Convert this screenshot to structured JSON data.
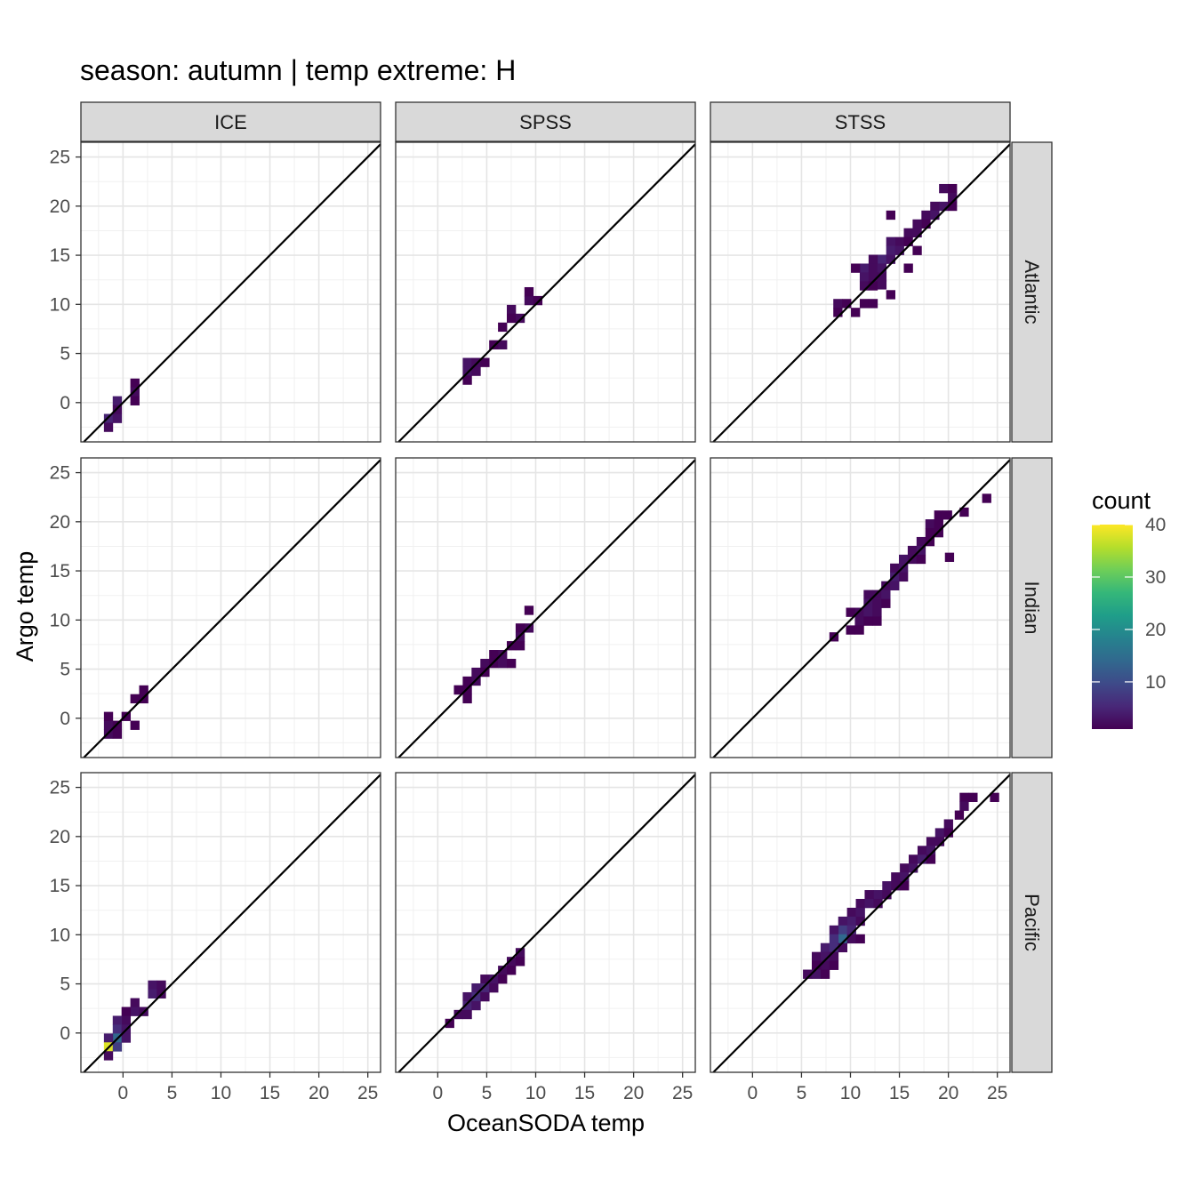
{
  "chart_data": {
    "type": "heatmap",
    "title": "season: autumn | temp extreme: H",
    "xlabel": "OceanSODA temp",
    "ylabel": "Argo temp",
    "xlim": [
      -4.3,
      26.3
    ],
    "ylim": [
      -4.0,
      26.5
    ],
    "ticks": [
      0,
      5,
      10,
      15,
      20,
      25
    ],
    "tick_labels": [
      "0",
      "5",
      "10",
      "15",
      "20",
      "25"
    ],
    "grid": true,
    "reference_line": "y = x",
    "bin_width": 0.9,
    "columns": [
      "ICE",
      "SPSS",
      "STSS"
    ],
    "rows": [
      "Atlantic",
      "Indian",
      "Pacific"
    ],
    "legend": {
      "title": "count",
      "position": "right",
      "ticks": [
        10,
        20,
        30,
        40
      ],
      "tick_labels": [
        "10",
        "20",
        "30",
        "40"
      ],
      "min": 1,
      "max": 40,
      "colors": [
        "#440154",
        "#482878",
        "#3e4a89",
        "#31688e",
        "#26828e",
        "#1f9e89",
        "#35b779",
        "#6ece58",
        "#b5de2b",
        "#fde725"
      ]
    },
    "panels": [
      {
        "col": "ICE",
        "row": "Atlantic",
        "cells": [
          [
            1.2,
            2.0,
            1
          ],
          [
            1.2,
            1.1,
            2
          ],
          [
            1.2,
            0.2,
            1
          ],
          [
            -0.6,
            0.2,
            4
          ],
          [
            -0.6,
            -0.7,
            2
          ],
          [
            -1.5,
            -1.6,
            5
          ],
          [
            -0.6,
            -1.6,
            3
          ],
          [
            -1.5,
            -2.5,
            2
          ]
        ]
      },
      {
        "col": "SPSS",
        "row": "Atlantic",
        "cells": [
          [
            9.3,
            10.4,
            2
          ],
          [
            10.2,
            10.4,
            1
          ],
          [
            9.3,
            11.3,
            1
          ],
          [
            7.5,
            9.5,
            2
          ],
          [
            7.5,
            8.6,
            1
          ],
          [
            8.4,
            8.6,
            2
          ],
          [
            6.6,
            7.7,
            1
          ],
          [
            6.6,
            5.9,
            2
          ],
          [
            5.7,
            5.9,
            1
          ],
          [
            3.0,
            4.1,
            3
          ],
          [
            3.9,
            4.1,
            2
          ],
          [
            4.8,
            4.1,
            1
          ],
          [
            3.0,
            3.2,
            3
          ],
          [
            3.9,
            3.2,
            2
          ],
          [
            3.0,
            2.3,
            1
          ]
        ]
      },
      {
        "col": "STSS",
        "row": "Atlantic",
        "cells": [
          [
            19.5,
            21.8,
            2
          ],
          [
            20.4,
            21.8,
            1
          ],
          [
            20.4,
            20.9,
            2
          ],
          [
            19.5,
            20.0,
            3
          ],
          [
            20.4,
            20.0,
            1
          ],
          [
            18.6,
            20.0,
            2
          ],
          [
            17.7,
            19.1,
            2
          ],
          [
            18.6,
            19.1,
            3
          ],
          [
            17.7,
            18.2,
            1
          ],
          [
            16.8,
            18.2,
            2
          ],
          [
            14.1,
            19.1,
            1
          ],
          [
            15.9,
            17.3,
            2
          ],
          [
            16.8,
            17.3,
            2
          ],
          [
            15.0,
            16.4,
            2
          ],
          [
            15.9,
            16.4,
            1
          ],
          [
            14.1,
            16.4,
            3
          ],
          [
            14.1,
            15.5,
            4
          ],
          [
            15.0,
            15.5,
            3
          ],
          [
            16.8,
            15.5,
            1
          ],
          [
            13.2,
            14.6,
            5
          ],
          [
            14.1,
            14.6,
            3
          ],
          [
            12.3,
            14.6,
            2
          ],
          [
            11.4,
            13.7,
            4
          ],
          [
            12.3,
            13.7,
            2
          ],
          [
            13.2,
            13.7,
            3
          ],
          [
            10.5,
            13.7,
            1
          ],
          [
            11.4,
            12.8,
            3
          ],
          [
            12.3,
            12.8,
            2
          ],
          [
            13.2,
            12.8,
            2
          ],
          [
            11.4,
            11.9,
            2
          ],
          [
            12.3,
            11.9,
            1
          ],
          [
            14.1,
            11.0,
            1
          ],
          [
            8.7,
            10.1,
            2
          ],
          [
            9.6,
            10.1,
            1
          ],
          [
            11.4,
            10.1,
            1
          ],
          [
            12.3,
            10.1,
            1
          ],
          [
            8.7,
            9.2,
            1
          ],
          [
            10.5,
            9.2,
            1
          ],
          [
            15.9,
            13.7,
            1
          ],
          [
            13.2,
            12.0,
            2
          ]
        ]
      },
      {
        "col": "ICE",
        "row": "Indian",
        "cells": [
          [
            2.1,
            2.9,
            1
          ],
          [
            1.2,
            2.0,
            1
          ],
          [
            2.1,
            2.0,
            1
          ],
          [
            0.3,
            0.2,
            1
          ],
          [
            -1.5,
            -0.7,
            2
          ],
          [
            -0.6,
            -0.7,
            1
          ],
          [
            -1.5,
            -1.6,
            2
          ],
          [
            -0.6,
            -1.6,
            1
          ],
          [
            1.2,
            -0.7,
            1
          ],
          [
            -1.5,
            0.2,
            1
          ]
        ]
      },
      {
        "col": "SPSS",
        "row": "Indian",
        "cells": [
          [
            9.3,
            11.0,
            1
          ],
          [
            9.3,
            9.2,
            2
          ],
          [
            8.4,
            9.2,
            1
          ],
          [
            8.4,
            8.3,
            2
          ],
          [
            7.5,
            7.4,
            1
          ],
          [
            8.4,
            7.4,
            1
          ],
          [
            6.6,
            6.5,
            2
          ],
          [
            5.7,
            6.5,
            1
          ],
          [
            4.8,
            5.6,
            2
          ],
          [
            5.7,
            5.6,
            1
          ],
          [
            6.6,
            5.6,
            2
          ],
          [
            7.5,
            5.6,
            1
          ],
          [
            3.9,
            4.7,
            2
          ],
          [
            4.8,
            4.7,
            1
          ],
          [
            3.0,
            3.8,
            1
          ],
          [
            3.9,
            3.8,
            2
          ],
          [
            2.1,
            2.9,
            2
          ],
          [
            3.0,
            2.9,
            1
          ],
          [
            3.0,
            2.0,
            1
          ],
          [
            2.1,
            2.9,
            1
          ]
        ]
      },
      {
        "col": "STSS",
        "row": "Indian",
        "cells": [
          [
            23.9,
            22.4,
            1
          ],
          [
            21.6,
            21.0,
            1
          ],
          [
            19.0,
            20.7,
            1
          ],
          [
            19.9,
            20.7,
            1
          ],
          [
            18.1,
            19.8,
            2
          ],
          [
            19.0,
            19.8,
            1
          ],
          [
            18.1,
            18.9,
            1
          ],
          [
            19.0,
            18.9,
            1
          ],
          [
            17.2,
            18.0,
            2
          ],
          [
            18.1,
            18.0,
            1
          ],
          [
            16.3,
            17.1,
            2
          ],
          [
            17.2,
            17.1,
            3
          ],
          [
            15.4,
            16.2,
            3
          ],
          [
            16.3,
            16.2,
            2
          ],
          [
            17.2,
            16.2,
            1
          ],
          [
            20.1,
            16.4,
            1
          ],
          [
            14.5,
            15.3,
            2
          ],
          [
            15.4,
            15.3,
            3
          ],
          [
            14.5,
            14.4,
            4
          ],
          [
            15.4,
            14.4,
            2
          ],
          [
            13.6,
            13.5,
            2
          ],
          [
            14.5,
            13.5,
            3
          ],
          [
            12.7,
            12.6,
            2
          ],
          [
            13.6,
            12.6,
            3
          ],
          [
            11.8,
            12.6,
            2
          ],
          [
            11.8,
            11.7,
            3
          ],
          [
            12.7,
            11.7,
            2
          ],
          [
            13.6,
            11.7,
            1
          ],
          [
            10.9,
            10.8,
            2
          ],
          [
            11.8,
            10.8,
            3
          ],
          [
            12.7,
            10.8,
            2
          ],
          [
            10.0,
            10.8,
            1
          ],
          [
            10.9,
            9.9,
            2
          ],
          [
            11.8,
            9.9,
            1
          ],
          [
            12.7,
            9.9,
            1
          ],
          [
            10.0,
            9.0,
            1
          ],
          [
            10.9,
            9.0,
            1
          ],
          [
            8.3,
            8.3,
            1
          ]
        ]
      },
      {
        "col": "ICE",
        "row": "Pacific",
        "cells": [
          [
            3.0,
            4.9,
            3
          ],
          [
            3.9,
            4.9,
            2
          ],
          [
            3.0,
            4.0,
            4
          ],
          [
            3.9,
            4.0,
            2
          ],
          [
            1.2,
            3.1,
            2
          ],
          [
            1.2,
            2.2,
            3
          ],
          [
            2.1,
            2.2,
            2
          ],
          [
            0.3,
            2.2,
            1
          ],
          [
            0.3,
            1.3,
            2
          ],
          [
            -0.6,
            1.3,
            4
          ],
          [
            -0.6,
            0.4,
            6
          ],
          [
            0.3,
            0.4,
            3
          ],
          [
            -0.6,
            -0.5,
            14
          ],
          [
            0.3,
            -0.5,
            3
          ],
          [
            -1.5,
            -0.5,
            4
          ],
          [
            -1.5,
            -1.4,
            38
          ],
          [
            -0.6,
            -1.4,
            8
          ],
          [
            -1.5,
            -2.3,
            2
          ]
        ]
      },
      {
        "col": "SPSS",
        "row": "Pacific",
        "cells": [
          [
            8.4,
            8.2,
            2
          ],
          [
            7.5,
            7.3,
            2
          ],
          [
            8.4,
            7.3,
            1
          ],
          [
            6.6,
            6.4,
            2
          ],
          [
            7.5,
            6.4,
            1
          ],
          [
            4.8,
            5.5,
            2
          ],
          [
            5.7,
            5.5,
            3
          ],
          [
            6.6,
            5.5,
            1
          ],
          [
            3.9,
            4.6,
            4
          ],
          [
            4.8,
            4.6,
            5
          ],
          [
            5.7,
            4.6,
            2
          ],
          [
            3.0,
            3.7,
            3
          ],
          [
            3.9,
            3.7,
            6
          ],
          [
            4.8,
            3.7,
            2
          ],
          [
            3.0,
            2.8,
            5
          ],
          [
            3.9,
            2.8,
            3
          ],
          [
            2.1,
            1.9,
            2
          ],
          [
            3.0,
            1.9,
            2
          ],
          [
            1.2,
            1.0,
            1
          ]
        ]
      },
      {
        "col": "STSS",
        "row": "Pacific",
        "cells": [
          [
            21.6,
            24.0,
            1
          ],
          [
            22.5,
            24.0,
            1
          ],
          [
            24.7,
            24.0,
            1
          ],
          [
            21.6,
            23.1,
            2
          ],
          [
            21.1,
            22.2,
            1
          ],
          [
            20.0,
            21.3,
            2
          ],
          [
            19.1,
            20.4,
            3
          ],
          [
            20.0,
            20.4,
            1
          ],
          [
            18.2,
            19.5,
            2
          ],
          [
            19.1,
            19.5,
            2
          ],
          [
            17.3,
            18.6,
            2
          ],
          [
            18.2,
            18.6,
            3
          ],
          [
            16.4,
            17.7,
            2
          ],
          [
            17.3,
            17.7,
            4
          ],
          [
            18.2,
            17.7,
            1
          ],
          [
            15.5,
            16.8,
            2
          ],
          [
            16.4,
            16.8,
            3
          ],
          [
            14.6,
            15.9,
            2
          ],
          [
            15.5,
            15.9,
            3
          ],
          [
            13.7,
            15.0,
            3
          ],
          [
            14.6,
            15.0,
            2
          ],
          [
            15.5,
            15.0,
            1
          ],
          [
            12.8,
            14.1,
            3
          ],
          [
            13.7,
            14.1,
            2
          ],
          [
            11.9,
            14.1,
            2
          ],
          [
            11.0,
            13.2,
            2
          ],
          [
            11.9,
            13.2,
            3
          ],
          [
            12.8,
            13.2,
            2
          ],
          [
            10.1,
            12.3,
            2
          ],
          [
            11.0,
            12.3,
            3
          ],
          [
            10.1,
            11.4,
            4
          ],
          [
            11.0,
            11.4,
            2
          ],
          [
            9.2,
            11.4,
            3
          ],
          [
            9.2,
            10.5,
            8
          ],
          [
            10.1,
            10.5,
            5
          ],
          [
            8.3,
            10.5,
            3
          ],
          [
            9.2,
            9.6,
            14
          ],
          [
            8.3,
            9.6,
            6
          ],
          [
            10.1,
            9.6,
            2
          ],
          [
            11.0,
            9.6,
            1
          ],
          [
            7.4,
            8.7,
            4
          ],
          [
            8.3,
            8.7,
            6
          ],
          [
            9.2,
            8.7,
            2
          ],
          [
            6.5,
            7.8,
            2
          ],
          [
            7.4,
            7.8,
            3
          ],
          [
            8.3,
            7.8,
            2
          ],
          [
            7.4,
            6.9,
            2
          ],
          [
            8.3,
            6.9,
            1
          ],
          [
            6.5,
            6.9,
            1
          ],
          [
            5.6,
            6.0,
            2
          ],
          [
            6.5,
            6.0,
            3
          ],
          [
            7.4,
            6.0,
            1
          ]
        ]
      }
    ]
  }
}
